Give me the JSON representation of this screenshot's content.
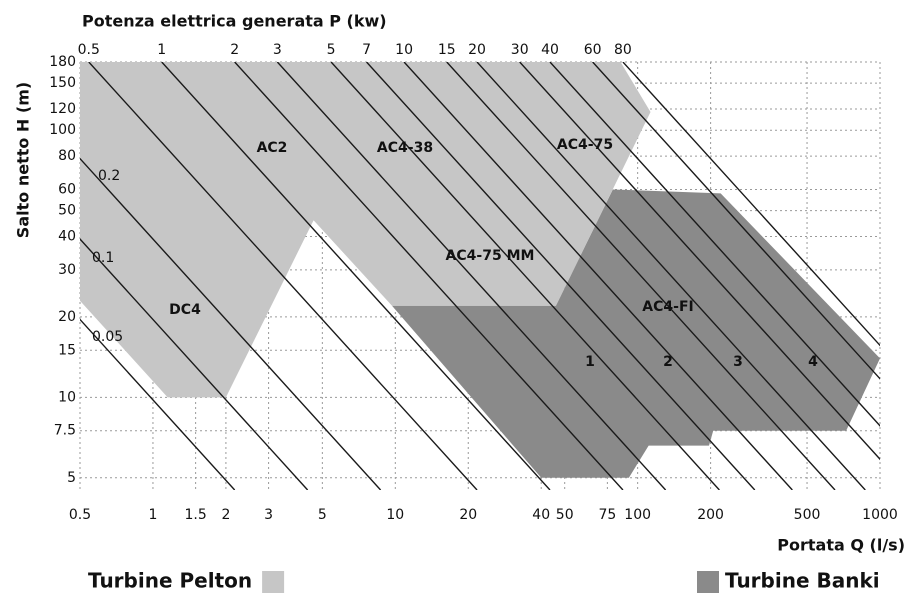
{
  "chart_data": {
    "type": "region",
    "x2_label": "Potenza elettrica generata P (kw)",
    "x_label": "Portata Q (l/s)",
    "y_label": "Salto netto H (m)",
    "log_x": true,
    "log_y": true,
    "grid": true,
    "xlim": [
      0.5,
      1000
    ],
    "xticks": [
      0.5,
      1,
      1.5,
      2,
      3,
      5,
      10,
      20,
      40,
      50,
      75,
      100,
      200,
      500,
      1000
    ],
    "ylim": [
      4.5,
      180
    ],
    "yticks": [
      5,
      7.5,
      10,
      15,
      20,
      30,
      40,
      50,
      60,
      80,
      100,
      120,
      150,
      180
    ],
    "x2lim": [
      0.46,
      920
    ],
    "x2ticks": [
      0.5,
      1,
      2,
      3,
      5,
      7,
      10,
      15,
      20,
      30,
      40,
      60,
      80
    ],
    "low_power_lines": [
      0.2,
      0.1,
      0.05
    ],
    "series": [
      {
        "name": "Turbine Pelton",
        "color": "#c6c6c6",
        "x": [
          0.5,
          85,
          113,
          46,
          9.7,
          4.6,
          2,
          1.15,
          0.5
        ],
        "values": [
          180,
          180,
          117,
          22,
          22,
          46,
          10,
          10,
          23
        ]
      },
      {
        "name": "Turbine Banki",
        "color": "#8a8a8a",
        "x": [
          9.7,
          46,
          79,
          220,
          1000,
          725,
          205,
          197,
          111,
          92,
          40
        ],
        "values": [
          22,
          22,
          60,
          58,
          14,
          7.5,
          7.5,
          6.6,
          6.6,
          5,
          5
        ]
      }
    ],
    "annotations": [
      "DC4",
      "AC2",
      "AC4-38",
      "AC4-75",
      "AC4-75 MM",
      "AC4-FI",
      "1",
      "2",
      "3",
      "4"
    ]
  }
}
